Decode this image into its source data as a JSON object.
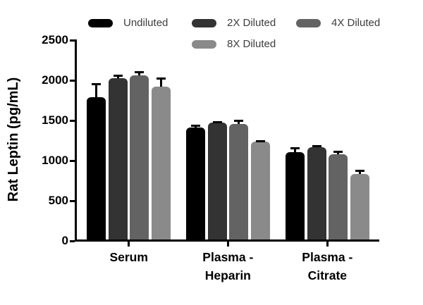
{
  "chart_data": {
    "type": "bar",
    "title": "",
    "ylabel": "Rat Leptin (pg/mL)",
    "xlabel": "",
    "ylim": [
      0,
      2500
    ],
    "yticks": [
      0,
      500,
      1000,
      1500,
      2000,
      2500
    ],
    "categories": [
      "Serum",
      "Plasma -\nHeparin",
      "Plasma -\nCitrate"
    ],
    "series": [
      {
        "name": "Undiluted",
        "color": "#000000",
        "values": [
          1790,
          1410,
          1105
        ],
        "errors": [
          165,
          30,
          55
        ]
      },
      {
        "name": "2X Diluted",
        "color": "#333333",
        "values": [
          2030,
          1470,
          1170
        ],
        "errors": [
          30,
          15,
          15
        ]
      },
      {
        "name": "4X Diluted",
        "color": "#636363",
        "values": [
          2060,
          1455,
          1080
        ],
        "errors": [
          45,
          45,
          30
        ]
      },
      {
        "name": "8X Diluted",
        "color": "#8a8a8a",
        "values": [
          1925,
          1240,
          830
        ],
        "errors": [
          105,
          10,
          50
        ]
      }
    ],
    "error_bars": "upper",
    "legend_position": "top",
    "grid": false
  }
}
